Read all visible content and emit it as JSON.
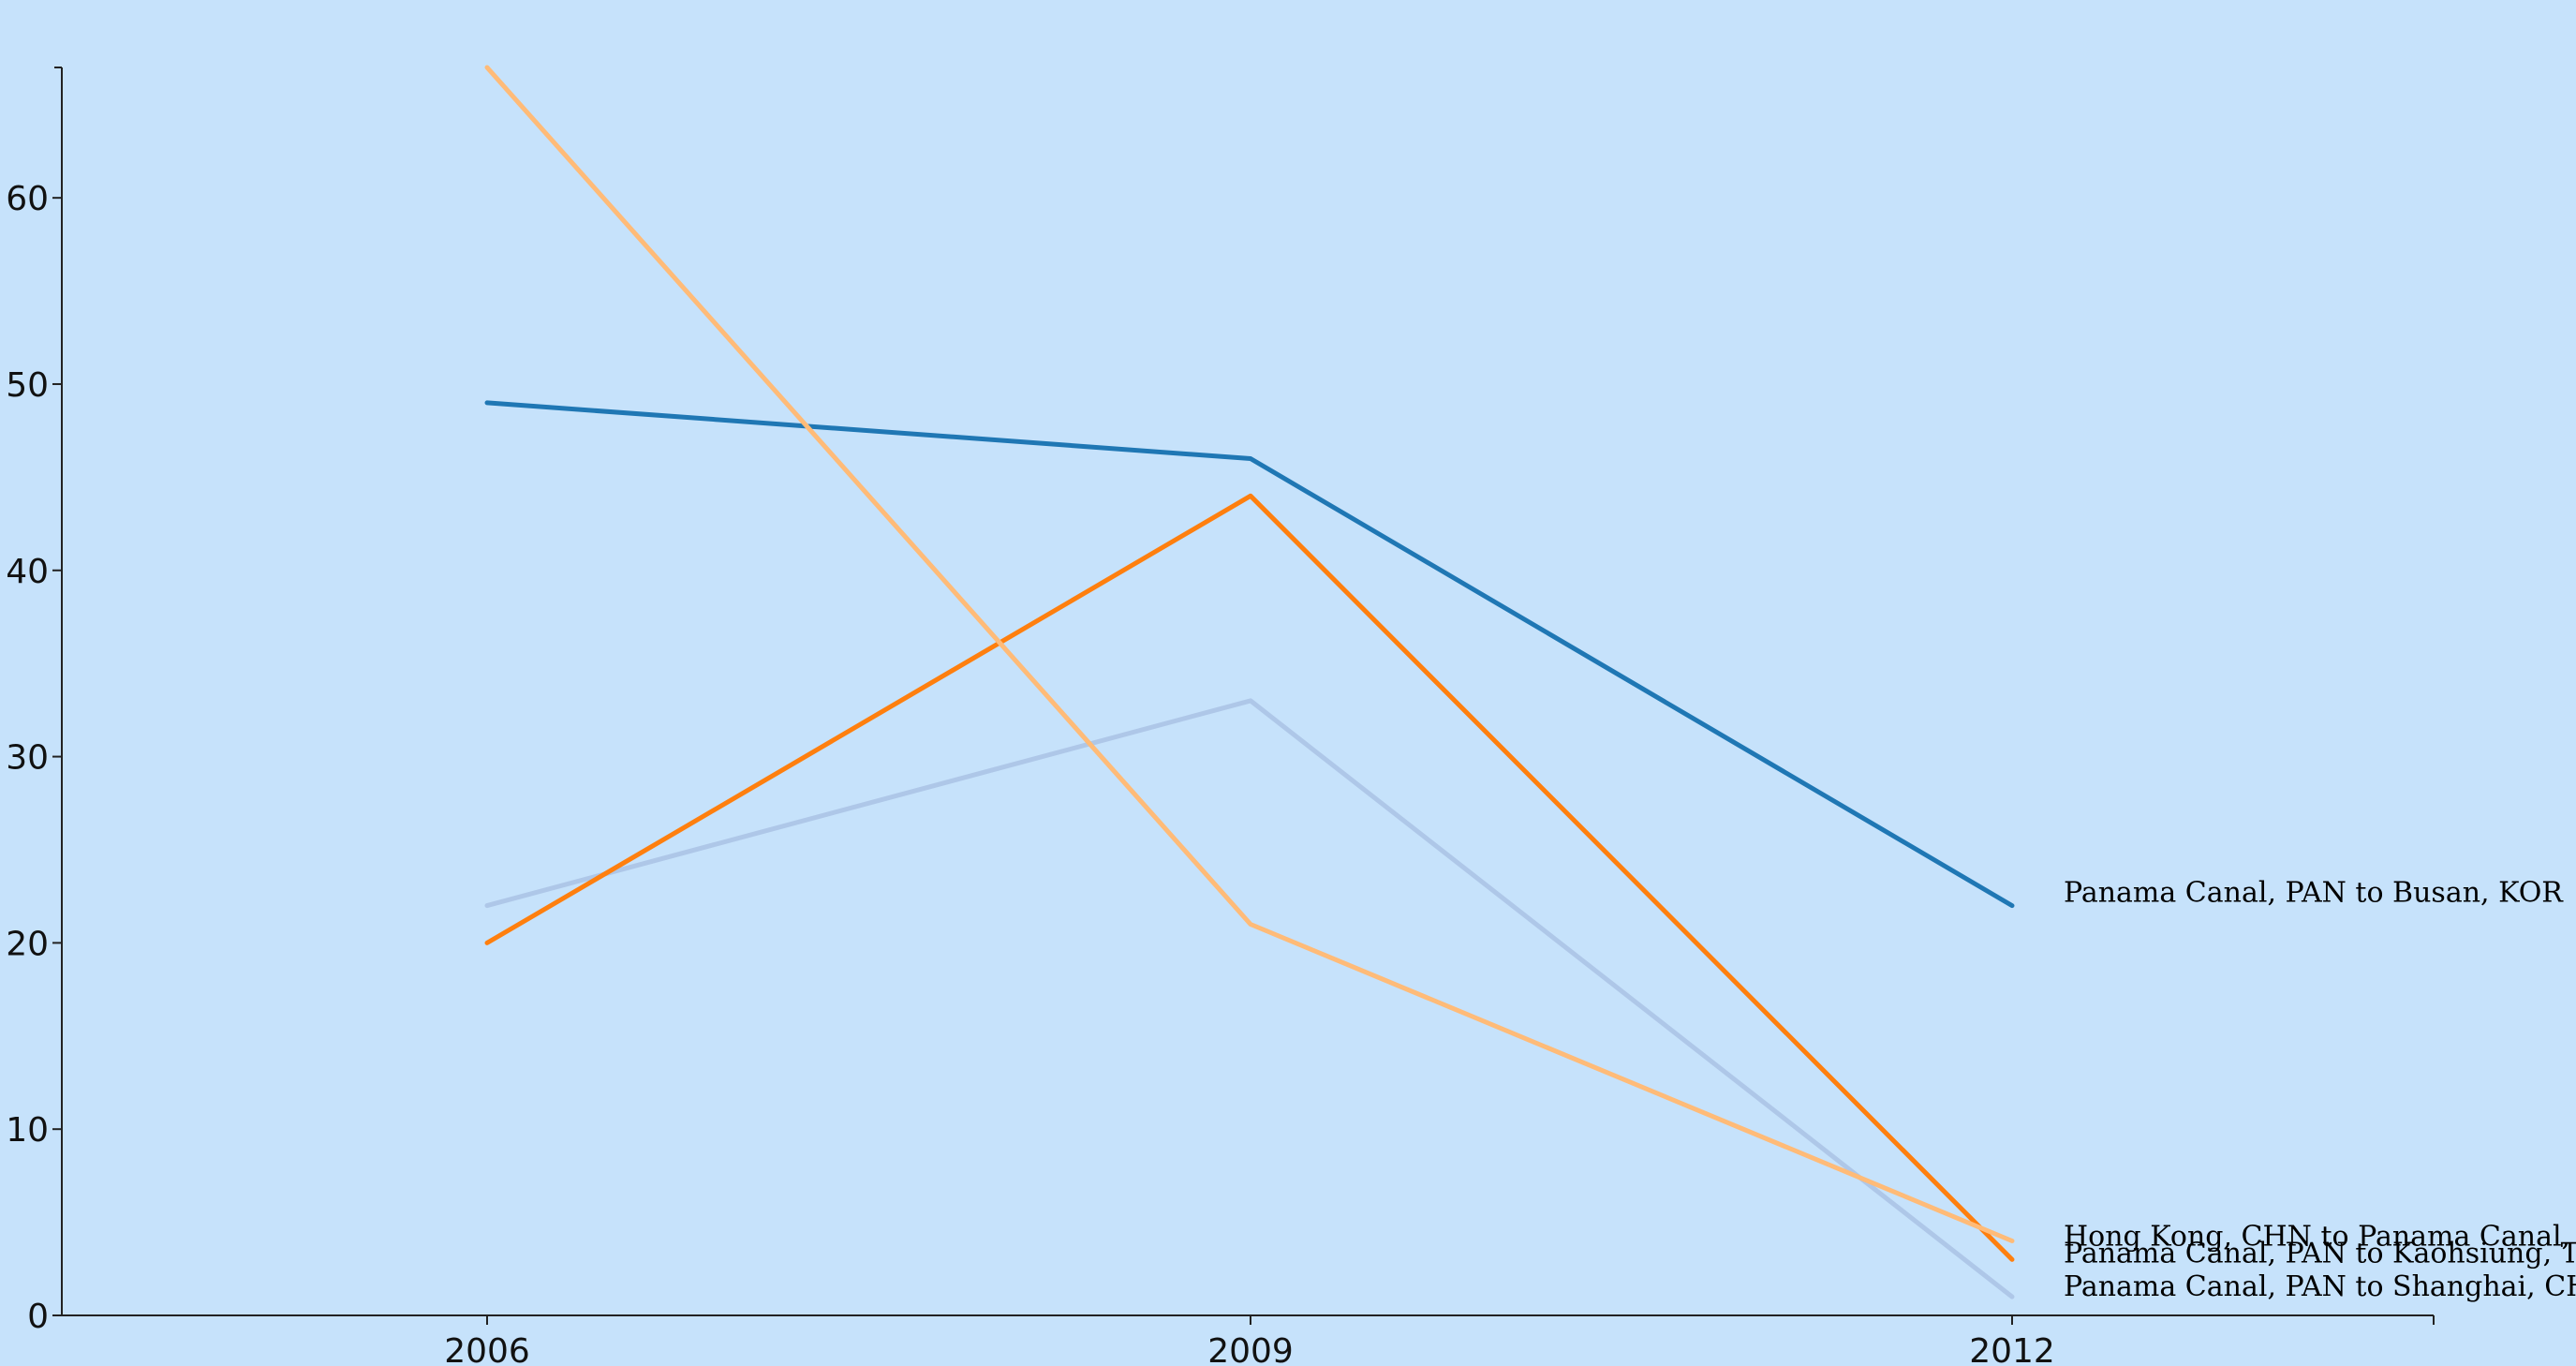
{
  "chart_data": {
    "type": "line",
    "title": "",
    "xlabel": "",
    "ylabel": "",
    "x": [
      "2006",
      "2009",
      "2012"
    ],
    "ylim": [
      0,
      67
    ],
    "yticks": [
      0,
      10,
      20,
      30,
      40,
      50,
      60
    ],
    "grid": false,
    "legend": "end-of-line labels, right",
    "series": [
      {
        "name": "Panama Canal, PAN to Busan, KOR",
        "values": [
          49,
          46,
          22
        ],
        "color": "#1f77b4"
      },
      {
        "name": "Panama Canal, PAN to Kaohsiung, TWN",
        "values": [
          20,
          44,
          3
        ],
        "color": "#ff7f0e"
      },
      {
        "name": "Hong Kong, CHN to Panama Canal, PAN",
        "values": [
          67,
          21,
          4
        ],
        "color": "#ffbb78"
      },
      {
        "name": "Panama Canal, PAN to Shanghai, CHN",
        "values": [
          22,
          33,
          1
        ],
        "color": "#aec7e8"
      }
    ]
  }
}
